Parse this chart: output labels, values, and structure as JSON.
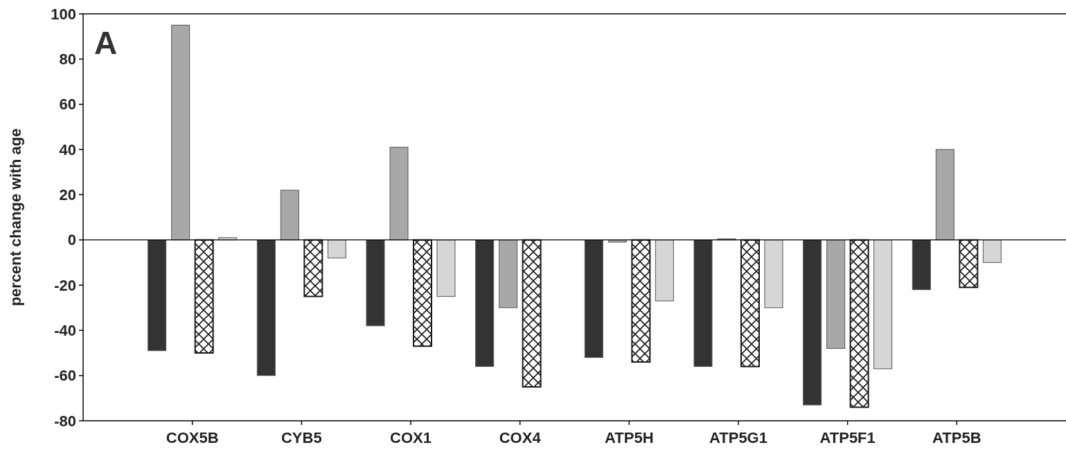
{
  "chart_data": {
    "type": "bar",
    "ylabel": "percent change with age",
    "annotations": [
      "A"
    ],
    "categories": [
      "COX5B",
      "CYB5",
      "COX1",
      "COX4",
      "ATP5H",
      "ATP5G1",
      "ATP5F1",
      "ATP5B"
    ],
    "series": [
      {
        "color": "#333333",
        "values": [
          -49,
          -60,
          -38,
          -56,
          -52,
          -56,
          -73,
          -22
        ]
      },
      {
        "color": "#a8a8a8",
        "values": [
          95,
          22,
          41,
          -30,
          -1,
          0.5,
          -48,
          40
        ]
      },
      {
        "color": "#1a1a1a",
        "values": [
          -50,
          -25,
          -47,
          -65,
          -54,
          -56,
          -74,
          -21
        ]
      },
      {
        "color": "#d6d6d6",
        "values": [
          1,
          -8,
          -25,
          null,
          -27,
          -30,
          -57,
          -10
        ]
      }
    ],
    "ylim": [
      -80,
      100
    ],
    "yticks": [
      -80,
      -60,
      -40,
      -20,
      0,
      20,
      40,
      60,
      80,
      100
    ]
  }
}
